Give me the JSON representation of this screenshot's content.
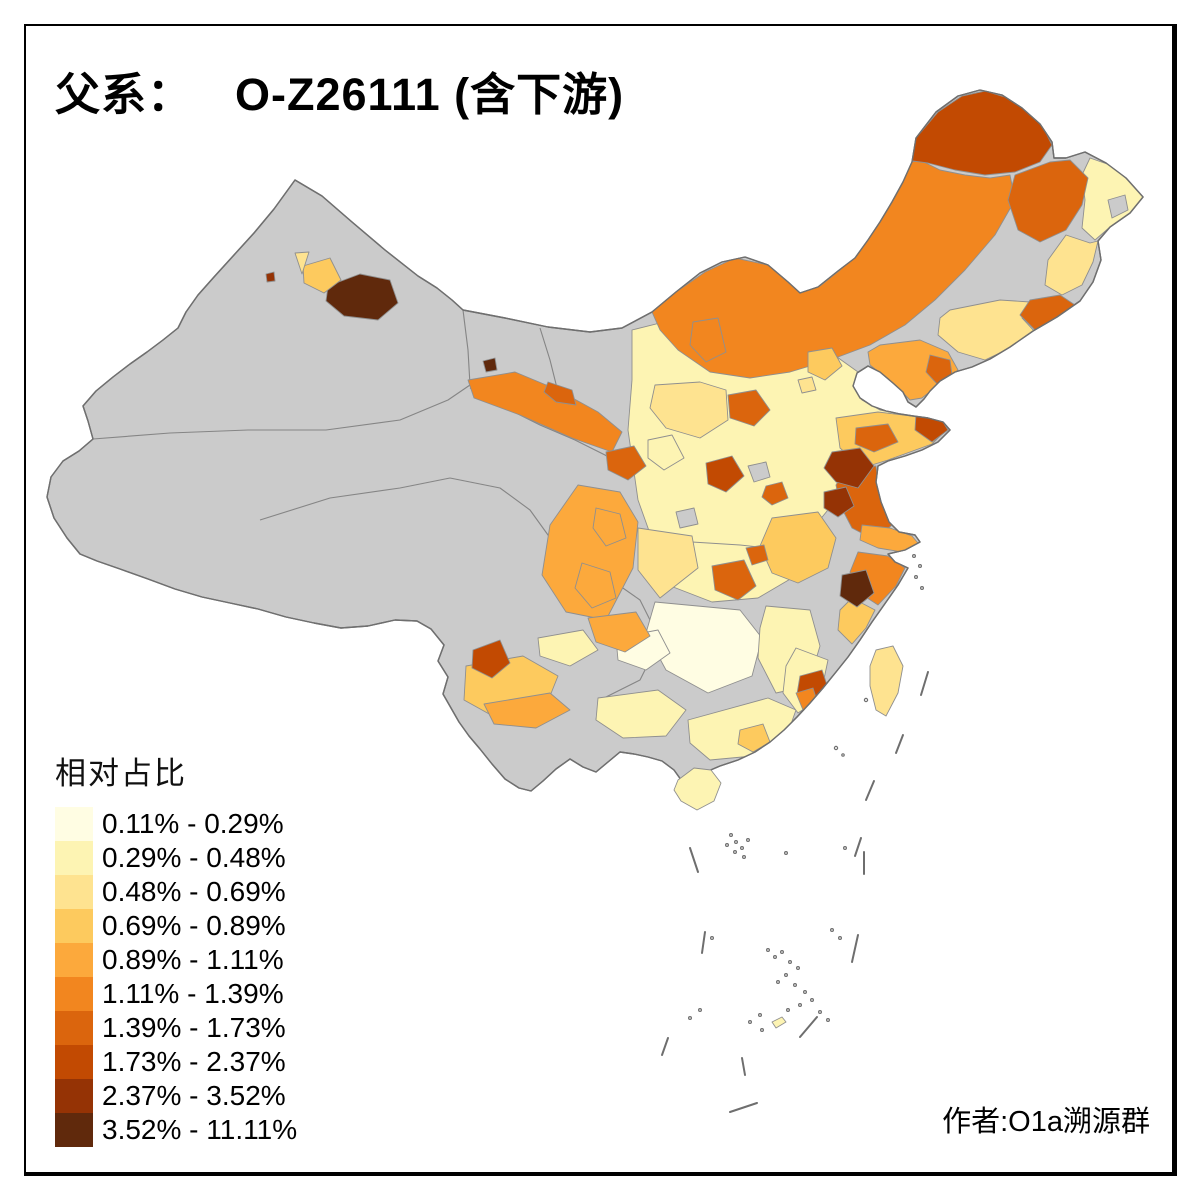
{
  "title": {
    "prefix": "父系：",
    "haplogroup": "O-Z26111 (含下游)"
  },
  "legend": {
    "title": "相对占比",
    "classes": [
      {
        "label": "0.11% - 0.29%",
        "color": "#FFFDE3"
      },
      {
        "label": "0.29% - 0.48%",
        "color": "#FDF4B3"
      },
      {
        "label": "0.48% - 0.69%",
        "color": "#FEE390"
      },
      {
        "label": "0.69% - 0.89%",
        "color": "#FDCA5E"
      },
      {
        "label": "0.89% - 1.11%",
        "color": "#FCA93C"
      },
      {
        "label": "1.11% - 1.39%",
        "color": "#F2861F"
      },
      {
        "label": "1.39% - 1.73%",
        "color": "#DB650D"
      },
      {
        "label": "1.73% - 2.37%",
        "color": "#C24A02"
      },
      {
        "label": "2.37% - 3.52%",
        "color": "#953305"
      },
      {
        "label": "3.52% - 11.11%",
        "color": "#60290C"
      }
    ]
  },
  "attribution": "作者:O1a溯源群",
  "map": {
    "nodata_color": "#CBCBCB",
    "boundary_color": "#858585",
    "outline_color": "#6F6F6F",
    "frame_color": "#000000",
    "background_color": "#FFFFFF",
    "dash_color": "#6E6E6E"
  }
}
